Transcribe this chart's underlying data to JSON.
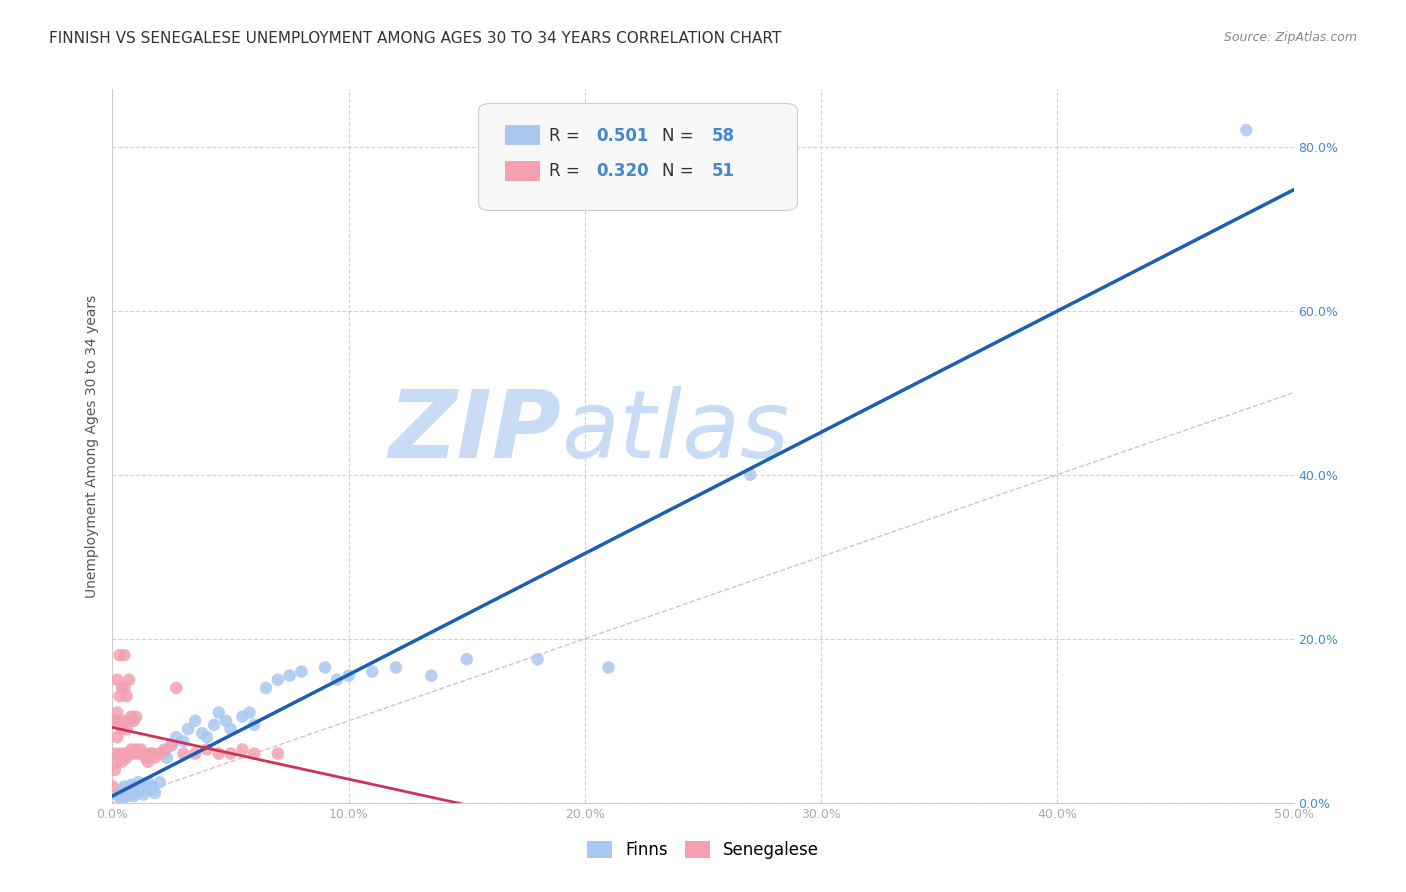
{
  "title": "FINNISH VS SENEGALESE UNEMPLOYMENT AMONG AGES 30 TO 34 YEARS CORRELATION CHART",
  "source": "Source: ZipAtlas.com",
  "ylabel": "Unemployment Among Ages 30 to 34 years",
  "xlim": [
    0.0,
    0.5
  ],
  "ylim": [
    0.0,
    0.87
  ],
  "xticks": [
    0.0,
    0.1,
    0.2,
    0.3,
    0.4,
    0.5
  ],
  "yticks": [
    0.0,
    0.2,
    0.4,
    0.6,
    0.8
  ],
  "xticklabels": [
    "0.0%",
    "10.0%",
    "20.0%",
    "30.0%",
    "40.0%",
    "50.0%"
  ],
  "right_yticklabels": [
    "0.0%",
    "20.0%",
    "40.0%",
    "60.0%",
    "80.0%"
  ],
  "finns_color": "#a8c8f0",
  "senegalese_color": "#f4a0b0",
  "finns_line_color": "#1a5fb4",
  "senegalese_line_color": "#cc3355",
  "diagonal_color": "#d0a0b0",
  "watermark_zip_color": "#c8dff0",
  "watermark_atlas_color": "#c8dff0",
  "background_color": "#ffffff",
  "grid_color": "#cccccc",
  "tick_color": "#aaaaaa",
  "right_tick_color": "#4488cc",
  "title_color": "#333333",
  "source_color": "#888888",
  "ylabel_color": "#555555",
  "legend_r_color": "#333333",
  "legend_n_color": "#4488cc",
  "legend_val_color": "#4488cc",
  "legend_border_color": "#cccccc",
  "legend_bg_color": "#f8f8f8",
  "finns_x": [
    0.002,
    0.003,
    0.004,
    0.004,
    0.005,
    0.005,
    0.006,
    0.006,
    0.007,
    0.007,
    0.008,
    0.008,
    0.009,
    0.009,
    0.01,
    0.01,
    0.011,
    0.011,
    0.012,
    0.013,
    0.013,
    0.014,
    0.015,
    0.016,
    0.017,
    0.018,
    0.02,
    0.022,
    0.023,
    0.025,
    0.027,
    0.03,
    0.032,
    0.035,
    0.038,
    0.04,
    0.043,
    0.045,
    0.048,
    0.05,
    0.055,
    0.058,
    0.06,
    0.065,
    0.07,
    0.075,
    0.08,
    0.09,
    0.095,
    0.1,
    0.11,
    0.12,
    0.135,
    0.15,
    0.18,
    0.21,
    0.27,
    0.48
  ],
  "finns_y": [
    0.01,
    0.008,
    0.015,
    0.005,
    0.01,
    0.02,
    0.008,
    0.015,
    0.012,
    0.018,
    0.01,
    0.022,
    0.008,
    0.015,
    0.02,
    0.012,
    0.018,
    0.025,
    0.015,
    0.01,
    0.022,
    0.018,
    0.025,
    0.015,
    0.02,
    0.012,
    0.025,
    0.06,
    0.055,
    0.07,
    0.08,
    0.075,
    0.09,
    0.1,
    0.085,
    0.08,
    0.095,
    0.11,
    0.1,
    0.09,
    0.105,
    0.11,
    0.095,
    0.14,
    0.15,
    0.155,
    0.16,
    0.165,
    0.15,
    0.155,
    0.16,
    0.165,
    0.155,
    0.175,
    0.175,
    0.165,
    0.4,
    0.82
  ],
  "senegalese_x": [
    0.0,
    0.001,
    0.001,
    0.001,
    0.002,
    0.002,
    0.002,
    0.002,
    0.003,
    0.003,
    0.003,
    0.003,
    0.004,
    0.004,
    0.004,
    0.005,
    0.005,
    0.005,
    0.005,
    0.006,
    0.006,
    0.006,
    0.007,
    0.007,
    0.007,
    0.008,
    0.008,
    0.009,
    0.009,
    0.01,
    0.01,
    0.011,
    0.012,
    0.013,
    0.014,
    0.015,
    0.016,
    0.017,
    0.018,
    0.02,
    0.022,
    0.025,
    0.027,
    0.03,
    0.035,
    0.04,
    0.045,
    0.05,
    0.055,
    0.06,
    0.07
  ],
  "senegalese_y": [
    0.02,
    0.04,
    0.06,
    0.1,
    0.05,
    0.08,
    0.11,
    0.15,
    0.06,
    0.1,
    0.13,
    0.18,
    0.05,
    0.09,
    0.14,
    0.06,
    0.1,
    0.14,
    0.18,
    0.055,
    0.09,
    0.13,
    0.06,
    0.1,
    0.15,
    0.065,
    0.105,
    0.06,
    0.1,
    0.065,
    0.105,
    0.06,
    0.065,
    0.06,
    0.055,
    0.05,
    0.06,
    0.06,
    0.055,
    0.06,
    0.065,
    0.07,
    0.14,
    0.06,
    0.06,
    0.065,
    0.06,
    0.06,
    0.065,
    0.06,
    0.06
  ],
  "title_fontsize": 11,
  "source_fontsize": 9,
  "axis_label_fontsize": 10,
  "tick_fontsize": 9,
  "marker_size": 9,
  "legend_fontsize": 12
}
